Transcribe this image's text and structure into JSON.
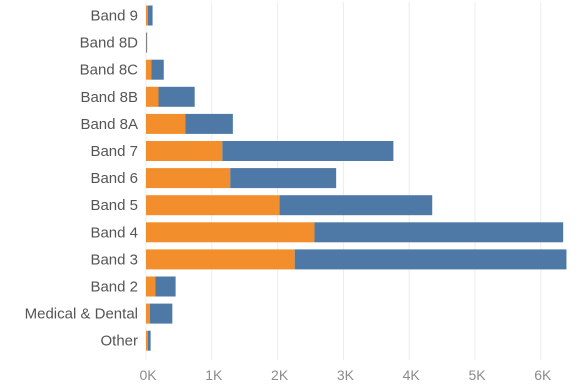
{
  "chart_data": {
    "type": "bar",
    "orientation": "horizontal",
    "stacked": true,
    "categories": [
      "Band 9",
      "Band 8D",
      "Band 8C",
      "Band 8B",
      "Band 8A",
      "Band 7",
      "Band 6",
      "Band 5",
      "Band 4",
      "Band 3",
      "Band 2",
      "Medical & Dental",
      "Other"
    ],
    "series": [
      {
        "color": "#f28e2b",
        "values": [
          30,
          5,
          80,
          190,
          600,
          1160,
          1280,
          2030,
          2560,
          2260,
          140,
          60,
          30
        ]
      },
      {
        "color": "#4e79a7",
        "values": [
          70,
          10,
          190,
          550,
          720,
          2600,
          1610,
          2320,
          3780,
          4130,
          310,
          340,
          40
        ]
      }
    ],
    "x_ticks": [
      "0K",
      "1K",
      "2K",
      "3K",
      "4K",
      "5K",
      "6K"
    ],
    "xlim": [
      0,
      6500
    ],
    "grid": "vertical",
    "title": "",
    "xlabel": "",
    "ylabel": ""
  }
}
